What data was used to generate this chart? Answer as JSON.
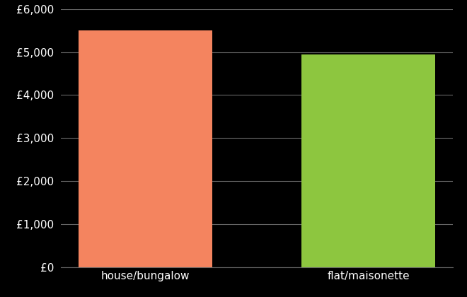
{
  "categories": [
    "house/bungalow",
    "flat/maisonette"
  ],
  "values": [
    5500,
    4950
  ],
  "bar_colors": [
    "#F4845F",
    "#8DC63F"
  ],
  "background_color": "#000000",
  "text_color": "#ffffff",
  "ylim": [
    0,
    6000
  ],
  "yticks": [
    0,
    1000,
    2000,
    3000,
    4000,
    5000,
    6000
  ],
  "grid_color": "#666666",
  "bar_width": 0.6,
  "figsize": [
    6.6,
    4.2
  ],
  "dpi": 100,
  "tick_fontsize": 11,
  "xlabel_fontsize": 11
}
